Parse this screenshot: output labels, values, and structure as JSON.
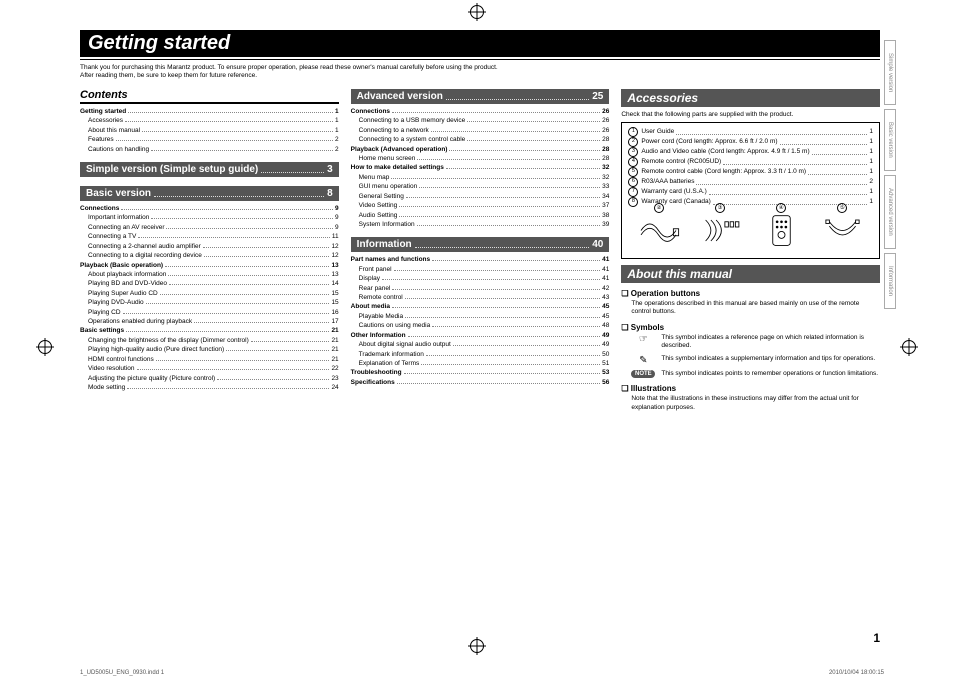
{
  "meta": {
    "lang": "ENGLISH",
    "page_num": "1",
    "footer_file": "1_UD5005U_ENG_0930.indd   1",
    "footer_ts": "2010/10/04   18:00:15"
  },
  "title": "Getting started",
  "intro": "Thank you for purchasing this Marantz product. To ensure proper operation, please read these owner's manual carefully before using the product.\nAfter reading them, be sure to keep them for future reference.",
  "contents_head": "Contents",
  "colors": {
    "bar_bg": "#000000",
    "bar_fg": "#ffffff",
    "inv_bg": "#555555",
    "dot": "#888888"
  },
  "toc_a": [
    {
      "l": 1,
      "t": "Getting started",
      "p": "1"
    },
    {
      "l": 2,
      "t": "Accessories",
      "p": "1"
    },
    {
      "l": 2,
      "t": "About this manual",
      "p": "1"
    },
    {
      "l": 2,
      "t": "Features",
      "p": "2"
    },
    {
      "l": 2,
      "t": "Cautions on handling",
      "p": "2"
    }
  ],
  "simple_head": {
    "t": "Simple version (Simple setup guide)",
    "p": "3"
  },
  "basic_head": {
    "t": "Basic version",
    "p": "8"
  },
  "toc_b": [
    {
      "l": 1,
      "t": "Connections",
      "p": "9"
    },
    {
      "l": 2,
      "t": "Important information",
      "p": "9"
    },
    {
      "l": 2,
      "t": "Connecting an AV receiver",
      "p": "9"
    },
    {
      "l": 2,
      "t": "Connecting a TV",
      "p": "11"
    },
    {
      "l": 2,
      "t": "Connecting a 2-channel audio amplifier",
      "p": "12"
    },
    {
      "l": 2,
      "t": "Connecting to a digital recording device",
      "p": "12"
    },
    {
      "l": 1,
      "t": "Playback (Basic operation)",
      "p": "13"
    },
    {
      "l": 2,
      "t": "About playback information",
      "p": "13"
    },
    {
      "l": 2,
      "t": "Playing BD and DVD-Video",
      "p": "14"
    },
    {
      "l": 2,
      "t": "Playing Super Audio CD",
      "p": "15"
    },
    {
      "l": 2,
      "t": "Playing DVD-Audio",
      "p": "15"
    },
    {
      "l": 2,
      "t": "Playing CD",
      "p": "16"
    },
    {
      "l": 2,
      "t": "Operations enabled during playback",
      "p": "17"
    },
    {
      "l": 1,
      "t": "Basic settings",
      "p": "21"
    },
    {
      "l": 2,
      "t": "Changing the brightness of the display (Dimmer control)",
      "p": "21"
    },
    {
      "l": 2,
      "t": "Playing high-quality audio (Pure direct function)",
      "p": "21"
    },
    {
      "l": 2,
      "t": "HDMI control functions",
      "p": "21"
    },
    {
      "l": 2,
      "t": "Video resolution",
      "p": "22"
    },
    {
      "l": 2,
      "t": "Adjusting the picture quality (Picture control)",
      "p": "23"
    },
    {
      "l": 2,
      "t": "Mode setting",
      "p": "24"
    }
  ],
  "adv_head": {
    "t": "Advanced version",
    "p": "25"
  },
  "toc_c": [
    {
      "l": 1,
      "t": "Connections",
      "p": "26"
    },
    {
      "l": 2,
      "t": "Connecting to a USB memory device",
      "p": "26"
    },
    {
      "l": 2,
      "t": "Connecting to a network",
      "p": "26"
    },
    {
      "l": 2,
      "t": "Connecting to a system control cable",
      "p": "28"
    },
    {
      "l": 1,
      "t": "Playback (Advanced operation)",
      "p": "28"
    },
    {
      "l": 2,
      "t": "Home menu screen",
      "p": "28"
    },
    {
      "l": 1,
      "t": "How to make detailed settings",
      "p": "32"
    },
    {
      "l": 2,
      "t": "Menu map",
      "p": "32"
    },
    {
      "l": 2,
      "t": "GUI menu operation",
      "p": "33"
    },
    {
      "l": 2,
      "t": "General Setting",
      "p": "34"
    },
    {
      "l": 2,
      "t": "Video Setting",
      "p": "37"
    },
    {
      "l": 2,
      "t": "Audio Setting",
      "p": "38"
    },
    {
      "l": 2,
      "t": "System Information",
      "p": "39"
    }
  ],
  "info_head": {
    "t": "Information",
    "p": "40"
  },
  "toc_d": [
    {
      "l": 1,
      "t": "Part names and functions",
      "p": "41"
    },
    {
      "l": 2,
      "t": "Front panel",
      "p": "41"
    },
    {
      "l": 2,
      "t": "Display",
      "p": "41"
    },
    {
      "l": 2,
      "t": "Rear panel",
      "p": "42"
    },
    {
      "l": 2,
      "t": "Remote control",
      "p": "43"
    },
    {
      "l": 1,
      "t": "About media",
      "p": "45"
    },
    {
      "l": 2,
      "t": "Playable Media",
      "p": "45"
    },
    {
      "l": 2,
      "t": "Cautions on using media",
      "p": "48"
    },
    {
      "l": 1,
      "t": "Other Information",
      "p": "49"
    },
    {
      "l": 2,
      "t": "About digital signal audio output",
      "p": "49"
    },
    {
      "l": 2,
      "t": "Trademark information",
      "p": "50"
    },
    {
      "l": 2,
      "t": "Explanation of Terms",
      "p": "51"
    },
    {
      "l": 1,
      "t": "Troubleshooting",
      "p": "53"
    },
    {
      "l": 1,
      "t": "Specifications",
      "p": "56"
    }
  ],
  "accessories": {
    "head": "Accessories",
    "intro": "Check that the following parts are supplied with the product.",
    "items": [
      {
        "n": "①",
        "t": "User Guide",
        "q": "1"
      },
      {
        "n": "②",
        "t": "Power cord (Cord length: Approx. 6.6 ft / 2.0 m)",
        "q": "1"
      },
      {
        "n": "③",
        "t": "Audio and Video cable (Cord length: Approx. 4.9 ft / 1.5 m)",
        "q": "1"
      },
      {
        "n": "④",
        "t": "Remote control (RC005UD)",
        "q": "1"
      },
      {
        "n": "⑤",
        "t": "Remote control cable (Cord length: Approx. 3.3 ft / 1.0 m)",
        "q": "1"
      },
      {
        "n": "⑥",
        "t": "R03/AAA batteries",
        "q": "2"
      },
      {
        "n": "⑦",
        "t": "Warranty card (U.S.A.)",
        "q": "1"
      },
      {
        "n": "⑧",
        "t": "Warranty card (Canada)",
        "q": "1"
      }
    ],
    "illus_nums": [
      "②",
      "③",
      "④",
      "⑤"
    ]
  },
  "about": {
    "head": "About this manual",
    "op_head": "Operation buttons",
    "op_text": "The operations described in this manual are based mainly on use of the remote control buttons.",
    "sym_head": "Symbols",
    "sym1": "This symbol indicates a reference page on which related information is described.",
    "sym2": "This symbol indicates a supplementary information and tips for operations.",
    "sym3": "This symbol indicates points to remember operations or function limitations.",
    "note_label": "NOTE",
    "ill_head": "Illustrations",
    "ill_text": "Note that the illustrations in these instructions may differ from the actual unit for explanation purposes."
  },
  "tabs": [
    "Simple version",
    "Basic version",
    "Advanced version",
    "Information"
  ]
}
